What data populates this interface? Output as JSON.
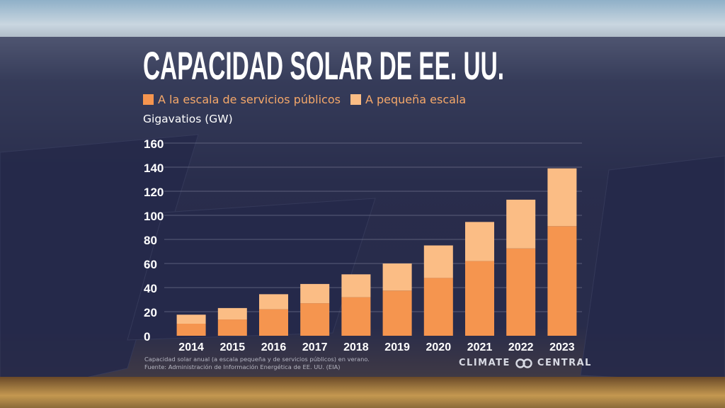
{
  "colors": {
    "utility": "#f5954f",
    "small": "#fbbd85",
    "grid": "#7d8099",
    "panel": "#2f3352"
  },
  "chart_data": {
    "type": "bar",
    "stacked": true,
    "title": "CAPACIDAD SOLAR DE EE. UU.",
    "ylabel": "Gigavatios (GW)",
    "xlabel": "",
    "categories": [
      "2014",
      "2015",
      "2016",
      "2017",
      "2018",
      "2019",
      "2020",
      "2021",
      "2022",
      "2023"
    ],
    "series": [
      {
        "name": "A la escala de servicios públicos",
        "values": [
          10,
          13.5,
          22,
          27,
          32,
          37.5,
          48,
          62,
          72.5,
          91
        ]
      },
      {
        "name": "A pequeña escala",
        "values": [
          7.5,
          9.5,
          12.5,
          16,
          19,
          22.5,
          27,
          32.5,
          40.5,
          48
        ]
      }
    ],
    "ylim": [
      0,
      160
    ],
    "yticks": [
      0,
      20,
      40,
      60,
      80,
      100,
      120,
      140,
      160
    ],
    "grid": true,
    "legend_placement": "top-left"
  },
  "footer": {
    "note": "Capacidad solar anual (a escala pequeña y de servicios públicos) en verano.",
    "source": "Fuente: Administración de Información Energética de EE. UU. (EIA)"
  },
  "logo": {
    "left": "CLIMATE",
    "right": "CENTRAL"
  }
}
